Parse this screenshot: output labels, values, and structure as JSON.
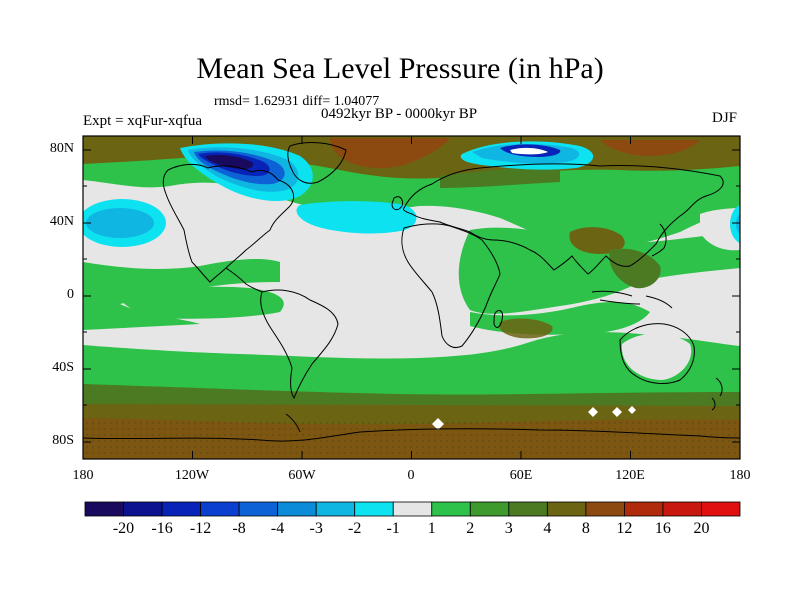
{
  "title": "Mean Sea Level Pressure (in hPa)",
  "stats": "rmsd= 1.62931 diff= 1.04077",
  "period": "0492kyr BP - 0000kyr BP",
  "experiment": "Expt = xqFur-xqfua",
  "season": "DJF",
  "map": {
    "lat_ticks": [
      "80N",
      "40N",
      "0",
      "40S",
      "80S"
    ],
    "lon_ticks": [
      "180",
      "120W",
      "60W",
      "0",
      "60E",
      "120E",
      "180"
    ]
  },
  "colorbar": {
    "labels": [
      "-20",
      "-16",
      "-12",
      "-8",
      "-4",
      "-3",
      "-2",
      "-1",
      "1",
      "2",
      "3",
      "4",
      "8",
      "12",
      "16",
      "20"
    ],
    "colors": [
      "#1a0a5e",
      "#0b138f",
      "#0824b8",
      "#0a3fcf",
      "#0d63d6",
      "#0b8bd8",
      "#10b6e2",
      "#0de3f0",
      "#e6e6e6",
      "#2ec24a",
      "#3e9a2c",
      "#4c7a22",
      "#6b6412",
      "#8c4a10",
      "#b02a0c",
      "#c8170e",
      "#e01010"
    ]
  },
  "palette": {
    "ocean_light": "#e6e6e6",
    "green": "#2ec24a",
    "dark_green": "#4c7a22",
    "olive": "#6b6412",
    "brown": "#8c4a10",
    "cyan": "#0de3f0",
    "sky": "#10b6e2",
    "navy": "#0824b8"
  }
}
